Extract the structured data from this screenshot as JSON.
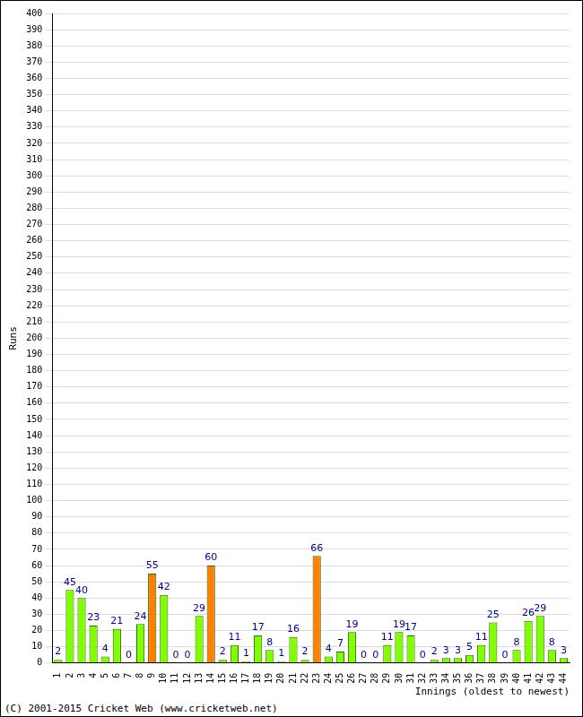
{
  "chart_data": {
    "type": "bar",
    "x_label": "Innings (oldest to newest)",
    "y_label": "Runs",
    "annotations": [
      "(C) 2001-2015 Cricket Web (www.cricketweb.net)"
    ],
    "categories": [
      "1",
      "2",
      "3",
      "4",
      "5",
      "6",
      "7",
      "8",
      "9",
      "10",
      "11",
      "12",
      "13",
      "14",
      "15",
      "16",
      "17",
      "18",
      "19",
      "20",
      "21",
      "22",
      "23",
      "24",
      "25",
      "26",
      "27",
      "28",
      "29",
      "30",
      "31",
      "32",
      "33",
      "34",
      "35",
      "36",
      "37",
      "38",
      "39",
      "40",
      "41",
      "42",
      "43",
      "44"
    ],
    "values": [
      2,
      45,
      40,
      23,
      4,
      21,
      0,
      24,
      55,
      42,
      0,
      0,
      29,
      60,
      2,
      11,
      1,
      17,
      8,
      1,
      16,
      2,
      66,
      4,
      7,
      19,
      0,
      0,
      11,
      19,
      17,
      0,
      2,
      3,
      3,
      5,
      11,
      25,
      0,
      8,
      26,
      29,
      8,
      3
    ],
    "colors": [
      "#80ff00",
      "#80ff00",
      "#80ff00",
      "#80ff00",
      "#80ff00",
      "#80ff00",
      "#80ff00",
      "#80ff00",
      "#ff8000",
      "#80ff00",
      "#80ff00",
      "#80ff00",
      "#80ff00",
      "#ff8000",
      "#80ff00",
      "#80ff00",
      "#80ff00",
      "#80ff00",
      "#80ff00",
      "#80ff00",
      "#80ff00",
      "#80ff00",
      "#ff8000",
      "#80ff00",
      "#80ff00",
      "#80ff00",
      "#80ff00",
      "#80ff00",
      "#80ff00",
      "#80ff00",
      "#80ff00",
      "#80ff00",
      "#80ff00",
      "#80ff00",
      "#80ff00",
      "#80ff00",
      "#80ff00",
      "#80ff00",
      "#80ff00",
      "#80ff00",
      "#80ff00",
      "#80ff00",
      "#80ff00",
      "#80ff00"
    ],
    "ylim": [
      0,
      400
    ],
    "yticks": [
      0,
      10,
      20,
      30,
      40,
      50,
      60,
      70,
      80,
      90,
      100,
      110,
      120,
      130,
      140,
      150,
      160,
      170,
      180,
      190,
      200,
      210,
      220,
      230,
      240,
      250,
      260,
      270,
      280,
      290,
      300,
      310,
      320,
      330,
      340,
      350,
      360,
      370,
      380,
      390,
      400
    ],
    "grid": true,
    "data_labels": true
  }
}
